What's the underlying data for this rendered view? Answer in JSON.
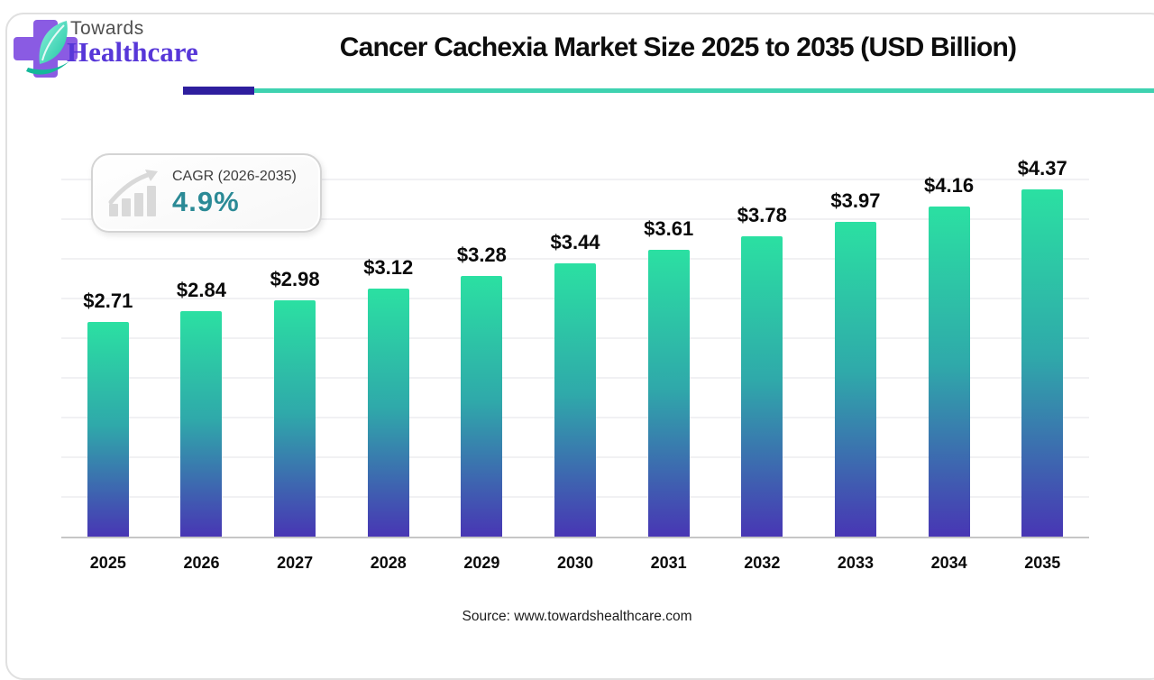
{
  "brand": {
    "towards": "Towards",
    "healthcare": "Healthcare"
  },
  "header": {
    "title": "Cancer Cachexia Market Size 2025 to 2035 (USD Billion)"
  },
  "cagr_badge": {
    "label": "CAGR (2026-2035)",
    "value": "4.9%"
  },
  "source": {
    "text": "Source: www.towardshealthcare.com"
  },
  "colors": {
    "bar_top": "#2be0a2",
    "bar_mid": "#2fa9aa",
    "bar_bottom": "#4836b4",
    "accent_purple": "#2e1e9e",
    "accent_teal": "#3ed2b0",
    "cagr_value_color": "#2b8a96",
    "logo_cross": "#8a5be3",
    "logo_leaf": "#2fd7b0"
  },
  "chart_data": {
    "type": "bar",
    "title": "Cancer Cachexia Market Size 2025 to 2035 (USD Billion)",
    "categories": [
      "2025",
      "2026",
      "2027",
      "2028",
      "2029",
      "2030",
      "2031",
      "2032",
      "2033",
      "2034",
      "2035"
    ],
    "values": [
      2.71,
      2.84,
      2.98,
      3.12,
      3.28,
      3.44,
      3.61,
      3.78,
      3.97,
      4.16,
      4.37
    ],
    "value_labels": [
      "$2.71",
      "$2.84",
      "$2.98",
      "$3.12",
      "$3.28",
      "$3.44",
      "$3.61",
      "$3.78",
      "$3.97",
      "$4.16",
      "$4.37"
    ],
    "xlabel": "",
    "ylabel": "",
    "unit": "USD Billion",
    "ylim": [
      0,
      5
    ],
    "grid": true,
    "grid_step": 0.5,
    "legend": "none",
    "bar_gradient": [
      "#2be0a2",
      "#2fa9aa",
      "#4836b4"
    ]
  }
}
